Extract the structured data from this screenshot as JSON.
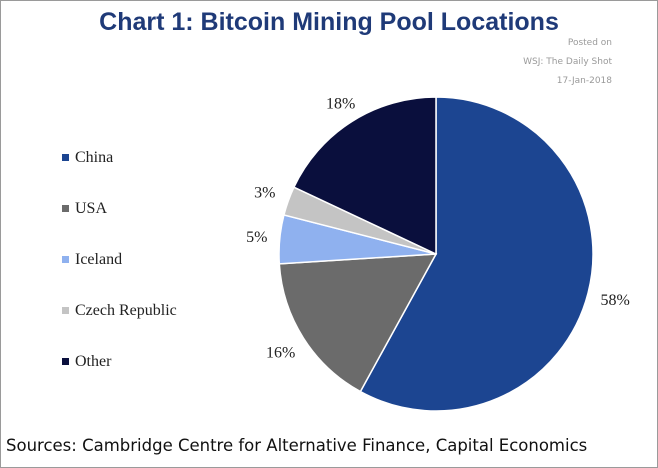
{
  "header": {
    "title": "Chart 1: Bitcoin Mining Pool Locations"
  },
  "watermark": {
    "line1": "Posted on",
    "line2": "WSJ: The Daily Shot",
    "line3": "17-Jan-2018"
  },
  "footer": {
    "source": "Sources: Cambridge Centre for Alternative Finance, Capital Economics"
  },
  "chart_data": {
    "type": "pie",
    "title": "Chart 1: Bitcoin Mining Pool Locations",
    "legend_position": "left",
    "slices": [
      {
        "name": "China",
        "value": 58,
        "label": "58%",
        "color": "#1c4591"
      },
      {
        "name": "USA",
        "value": 16,
        "label": "16%",
        "color": "#6b6b6b"
      },
      {
        "name": "Iceland",
        "value": 5,
        "label": "5%",
        "color": "#8fb1ef"
      },
      {
        "name": "Czech Republic",
        "value": 3,
        "label": "3%",
        "color": "#c4c4c4"
      },
      {
        "name": "Other",
        "value": 18,
        "label": "18%",
        "color": "#0a0f3d"
      }
    ]
  }
}
